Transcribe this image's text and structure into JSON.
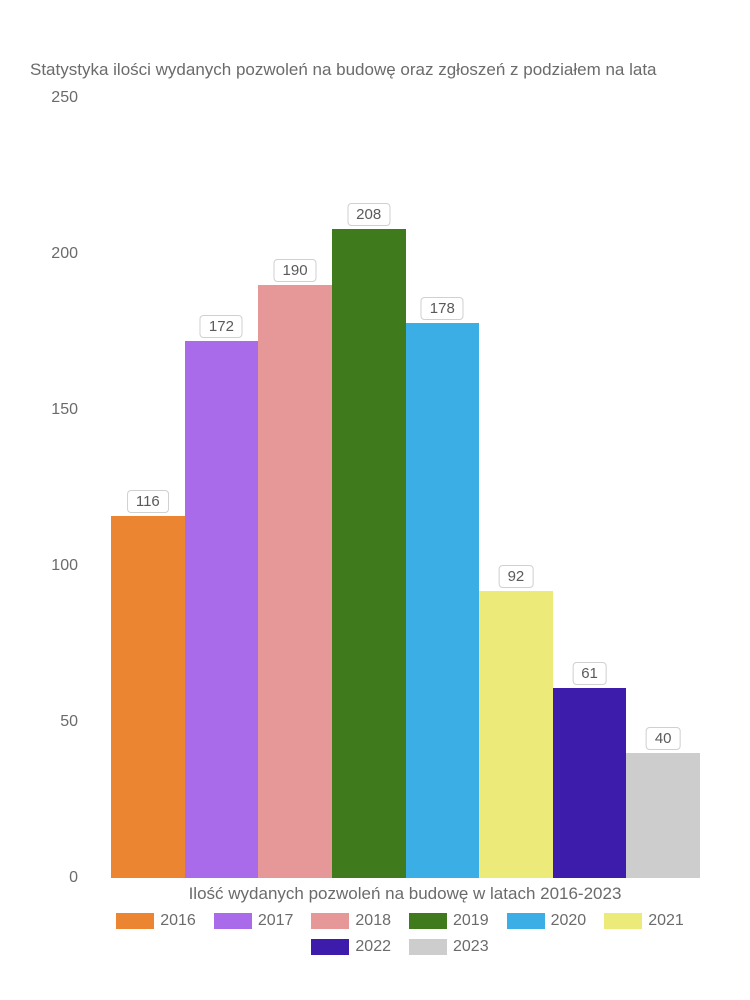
{
  "title": "Statystyka ilości wydanych pozwoleń na budowę oraz zgłoszeń z podziałem na lata",
  "xlabel": "Ilość wydanych pozwoleń na budowę w latach 2016-2023",
  "type": "bar",
  "ylim": [
    0,
    250
  ],
  "ytick_step": 50,
  "yticks": [
    0,
    50,
    100,
    150,
    200,
    250
  ],
  "bars": [
    {
      "year": "2016",
      "value": 116,
      "color": "#ec8532"
    },
    {
      "year": "2017",
      "value": 172,
      "color": "#a96bea"
    },
    {
      "year": "2018",
      "value": 190,
      "color": "#e69898"
    },
    {
      "year": "2019",
      "value": 208,
      "color": "#3f7a1c"
    },
    {
      "year": "2020",
      "value": 178,
      "color": "#3baee5"
    },
    {
      "year": "2021",
      "value": 92,
      "color": "#ecea78"
    },
    {
      "year": "2022",
      "value": 61,
      "color": "#3d1bab"
    },
    {
      "year": "2023",
      "value": 40,
      "color": "#cdcdcd"
    }
  ],
  "legend": [
    {
      "label": "2016",
      "color": "#ec8532"
    },
    {
      "label": "2017",
      "color": "#a96bea"
    },
    {
      "label": "2018",
      "color": "#e69898"
    },
    {
      "label": "2019",
      "color": "#3f7a1c"
    },
    {
      "label": "2020",
      "color": "#3baee5"
    },
    {
      "label": "2021",
      "color": "#ecea78"
    },
    {
      "label": "2022",
      "color": "#3d1bab"
    },
    {
      "label": "2023",
      "color": "#cdcdcd"
    }
  ],
  "background_color": "#ffffff",
  "text_color": "#6b6b6b",
  "label_box_border": "#d0d0d0",
  "title_fontsize": 17,
  "axis_fontsize": 16,
  "bar_width_ratio": 1.0
}
